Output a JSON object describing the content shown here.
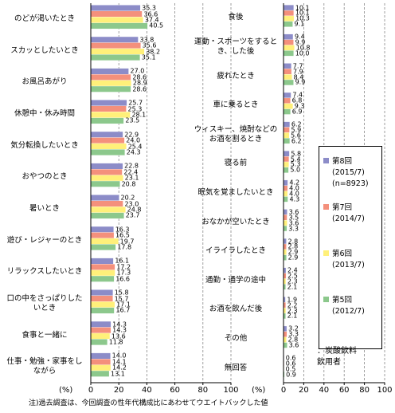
{
  "chart_data": [
    {
      "type": "bar",
      "orientation": "horizontal",
      "categories": [
        "のどが渇いたとき",
        "スカッとしたいとき",
        "お風呂あがり",
        "休憩中・休み時間",
        "気分転換したいとき",
        "おやつのとき",
        "暑いとき",
        "遊び・レジャーのとき",
        "リラックスしたいとき",
        "口の中をさっぱりした\nいとき",
        "食事と一緒に",
        "仕事・勉強・家事をし\nながら"
      ],
      "series": [
        {
          "color": "#8c8cc8",
          "values": [
            35.3,
            33.8,
            27.0,
            25.7,
            22.9,
            22.8,
            20.2,
            16.3,
            16.1,
            15.8,
            14.3,
            14.0
          ],
          "value_labels": [
            "35.3",
            "33.8",
            "27.0",
            "25.7",
            "22.9",
            "22.8",
            "20.2",
            "16.3",
            "16.1",
            "15.8",
            "14.3",
            "14.0"
          ]
        },
        {
          "color": "#f4907c",
          "values": [
            36.6,
            35.6,
            28.6,
            25.3,
            24.0,
            22.4,
            23.0,
            16.5,
            17.2,
            15.7,
            14.3,
            14.1
          ],
          "value_labels": [
            "36.6",
            "35.6",
            "28.6",
            "25.3",
            "24.0",
            "22.4",
            "23.0",
            "16.5",
            "17.2",
            "15.7",
            "14.3",
            "14.1"
          ]
        },
        {
          "color": "#fff07a",
          "values": [
            37.4,
            38.2,
            28.9,
            28.1,
            25.4,
            23.1,
            24.8,
            19.7,
            17.3,
            17.1,
            13.6,
            14.2
          ],
          "value_labels": [
            "37.4",
            "38.2",
            "28.9",
            "28.1",
            "25.4",
            "23.1",
            "24.8",
            "19.7",
            "17.3",
            "17.1",
            "13.6",
            "14.2"
          ]
        },
        {
          "color": "#8cc88c",
          "values": [
            40.5,
            35.1,
            28.6,
            23.5,
            24.3,
            20.8,
            23.7,
            17.8,
            16.6,
            16.7,
            11.8,
            13.1
          ],
          "value_labels": [
            "40.5",
            "35.1",
            "28.6",
            "23.5",
            "24.3",
            "20.8",
            "23.7",
            "17.8",
            "16.6",
            "16.7",
            "11.8",
            "13.1"
          ]
        }
      ],
      "xlabel": "(%)",
      "xlim": [
        0,
        100
      ],
      "xticks": [
        0,
        20,
        40,
        60,
        80,
        100
      ],
      "grid": true
    },
    {
      "type": "bar",
      "orientation": "horizontal",
      "categories": [
        "食後",
        "運動・スポーツをすると\nき、した後",
        "疲れたとき",
        "車に乗るとき",
        "ウィスキー、焼酎などの\nお酒を割るとき",
        "寝る前",
        "眠気を覚ましたいとき",
        "おなかが空いたとき",
        "イライラしたとき",
        "通勤・通学の途中",
        "お酒を飲んだ後",
        "その他",
        "無回答"
      ],
      "series": [
        {
          "name": "第8回\n(2015/7)\n(n=8923)",
          "color": "#8c8cc8",
          "values": [
            10.1,
            9.4,
            7.7,
            7.4,
            6.2,
            5.8,
            4.2,
            3.6,
            2.8,
            2.4,
            1.9,
            3.2,
            0.6
          ],
          "value_labels": [
            "10.1",
            "9.4",
            "7.7",
            "7.4",
            "6.2",
            "5.8",
            "4.2",
            "3.6",
            "2.8",
            "2.4",
            "1.9",
            "3.2",
            "0.6"
          ]
        },
        {
          "name": "第7回\n(2014/7)",
          "color": "#f4907c",
          "values": [
            10.1,
            9.9,
            7.9,
            6.8,
            5.9,
            5.4,
            4.0,
            3.5,
            2.8,
            2.5,
            2.2,
            3.3,
            0.6
          ],
          "value_labels": [
            "10.1",
            "9.9",
            "7.9",
            "6.8",
            "5.9",
            "5.4",
            "4.0",
            "3.5",
            "2.8",
            "2.5",
            "2.2",
            "3.3",
            "0.6"
          ]
        },
        {
          "name": "第6回\n(2013/7)",
          "color": "#fff07a",
          "values": [
            10.3,
            10.8,
            8.4,
            9.3,
            5.6,
            5.3,
            4.0,
            3.6,
            2.9,
            2.3,
            2.3,
            2.8,
            0.5
          ],
          "value_labels": [
            "10.3",
            "10.8",
            "8.4",
            "9.3",
            "5.6",
            "5.3",
            "4.0",
            "3.6",
            "2.9",
            "2.3",
            "2.3",
            "2.8",
            "0.5"
          ]
        },
        {
          "name": "第5回\n(2012/7)",
          "color": "#8cc88c",
          "values": [
            9.1,
            10.0,
            9.9,
            6.9,
            6.2,
            5.0,
            4.3,
            3.3,
            2.9,
            2.1,
            2.1,
            3.6,
            0.9
          ],
          "value_labels": [
            "9.1",
            "10.0",
            "9.9",
            "6.9",
            "6.2",
            "5.0",
            "4.3",
            "3.3",
            "2.9",
            "2.1",
            "2.1",
            "3.6",
            "0.9"
          ]
        }
      ],
      "annotation": "：炭酸飲料\n飲用者",
      "xlabel": "(%)",
      "xlim": [
        0,
        100
      ],
      "xticks": [
        0,
        20,
        40,
        60,
        80,
        100
      ],
      "grid": true
    }
  ],
  "note": "注)過去調査は、今回調査の性年代構成比にあわせてウエイトバックした値"
}
